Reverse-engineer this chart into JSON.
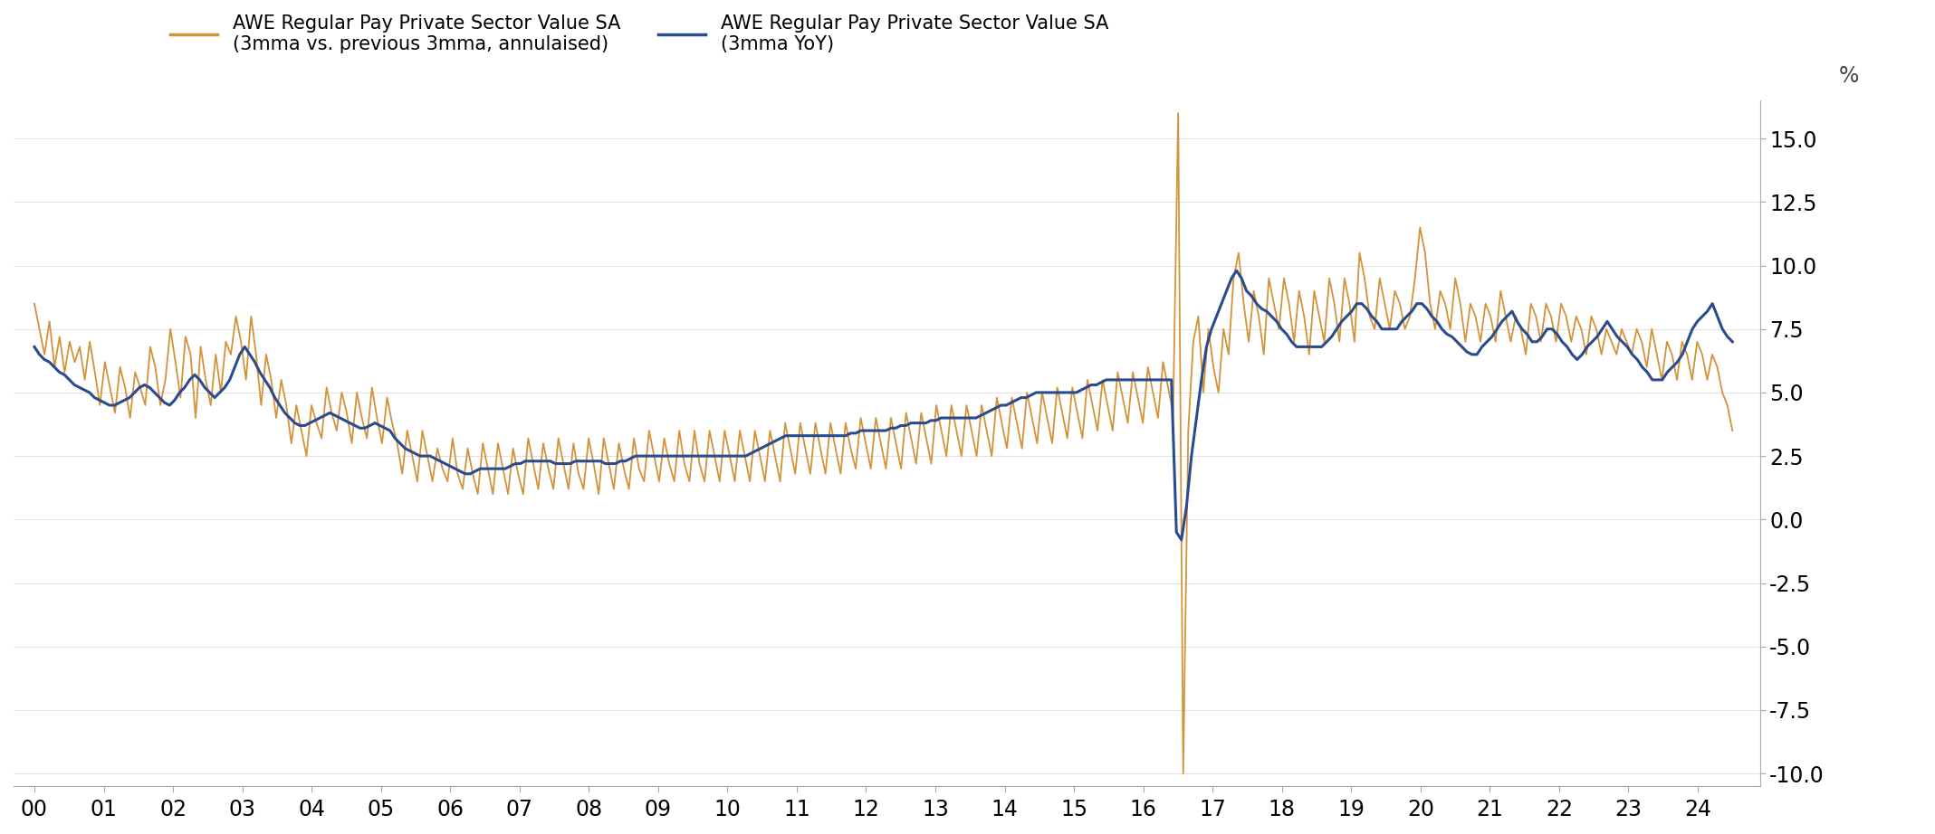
{
  "legend_label_orange": "AWE Regular Pay Private Sector Value SA\n(3mma vs. previous 3mma, annulaised)",
  "legend_label_blue": "AWE Regular Pay Private Sector Value SA\n(3mma YoY)",
  "ylabel": "%",
  "ylim": [
    -10.5,
    16.5
  ],
  "yticks": [
    -10.0,
    -7.5,
    -5.0,
    -2.5,
    0.0,
    2.5,
    5.0,
    7.5,
    10.0,
    12.5,
    15.0
  ],
  "color_orange": "#D4923A",
  "color_blue": "#2B4C8C",
  "xtick_labels": [
    "00",
    "01",
    "02",
    "03",
    "04",
    "05",
    "06",
    "07",
    "08",
    "09",
    "10",
    "11",
    "12",
    "13",
    "14",
    "15",
    "16",
    "17",
    "18",
    "19",
    "20",
    "21",
    "22",
    "23",
    "24"
  ],
  "background_color": "#ffffff",
  "blue_data": [
    6.8,
    6.5,
    6.3,
    6.2,
    6.0,
    5.8,
    5.7,
    5.5,
    5.3,
    5.2,
    5.1,
    5.0,
    4.8,
    4.7,
    4.6,
    4.5,
    4.5,
    4.6,
    4.7,
    4.8,
    5.0,
    5.2,
    5.3,
    5.2,
    5.0,
    4.8,
    4.6,
    4.5,
    4.7,
    5.0,
    5.2,
    5.5,
    5.7,
    5.5,
    5.2,
    5.0,
    4.8,
    5.0,
    5.2,
    5.5,
    6.0,
    6.5,
    6.8,
    6.5,
    6.2,
    5.8,
    5.5,
    5.2,
    4.8,
    4.5,
    4.2,
    4.0,
    3.8,
    3.7,
    3.7,
    3.8,
    3.9,
    4.0,
    4.1,
    4.2,
    4.1,
    4.0,
    3.9,
    3.8,
    3.7,
    3.6,
    3.6,
    3.7,
    3.8,
    3.7,
    3.6,
    3.5,
    3.2,
    3.0,
    2.8,
    2.7,
    2.6,
    2.5,
    2.5,
    2.5,
    2.4,
    2.3,
    2.2,
    2.1,
    2.0,
    1.9,
    1.8,
    1.8,
    1.9,
    2.0,
    2.0,
    2.0,
    2.0,
    2.0,
    2.0,
    2.1,
    2.2,
    2.2,
    2.3,
    2.3,
    2.3,
    2.3,
    2.3,
    2.3,
    2.2,
    2.2,
    2.2,
    2.2,
    2.3,
    2.3,
    2.3,
    2.3,
    2.3,
    2.3,
    2.2,
    2.2,
    2.2,
    2.3,
    2.3,
    2.4,
    2.5,
    2.5,
    2.5,
    2.5,
    2.5,
    2.5,
    2.5,
    2.5,
    2.5,
    2.5,
    2.5,
    2.5,
    2.5,
    2.5,
    2.5,
    2.5,
    2.5,
    2.5,
    2.5,
    2.5,
    2.5,
    2.5,
    2.5,
    2.6,
    2.7,
    2.8,
    2.9,
    3.0,
    3.1,
    3.2,
    3.3,
    3.3,
    3.3,
    3.3,
    3.3,
    3.3,
    3.3,
    3.3,
    3.3,
    3.3,
    3.3,
    3.3,
    3.3,
    3.4,
    3.4,
    3.5,
    3.5,
    3.5,
    3.5,
    3.5,
    3.5,
    3.6,
    3.6,
    3.7,
    3.7,
    3.8,
    3.8,
    3.8,
    3.8,
    3.9,
    3.9,
    4.0,
    4.0,
    4.0,
    4.0,
    4.0,
    4.0,
    4.0,
    4.0,
    4.1,
    4.2,
    4.3,
    4.4,
    4.5,
    4.5,
    4.6,
    4.7,
    4.8,
    4.8,
    4.9,
    5.0,
    5.0,
    5.0,
    5.0,
    5.0,
    5.0,
    5.0,
    5.0,
    5.0,
    5.1,
    5.2,
    5.3,
    5.3,
    5.4,
    5.5,
    5.5,
    5.5,
    5.5,
    5.5,
    5.5,
    5.5,
    5.5,
    5.5,
    5.5,
    5.5,
    5.5,
    5.5,
    5.5,
    -0.5,
    -0.8,
    0.5,
    2.5,
    4.0,
    5.5,
    6.8,
    7.5,
    8.0,
    8.5,
    9.0,
    9.5,
    9.8,
    9.5,
    9.0,
    8.8,
    8.5,
    8.3,
    8.2,
    8.0,
    7.8,
    7.5,
    7.3,
    7.0,
    6.8,
    6.8,
    6.8,
    6.8,
    6.8,
    6.8,
    7.0,
    7.2,
    7.5,
    7.8,
    8.0,
    8.2,
    8.5,
    8.5,
    8.3,
    8.0,
    7.8,
    7.5,
    7.5,
    7.5,
    7.5,
    7.8,
    8.0,
    8.2,
    8.5,
    8.5,
    8.3,
    8.0,
    7.8,
    7.5,
    7.3,
    7.2,
    7.0,
    6.8,
    6.6,
    6.5,
    6.5,
    6.8,
    7.0,
    7.2,
    7.5,
    7.8,
    8.0,
    8.2,
    7.8,
    7.5,
    7.3,
    7.0,
    7.0,
    7.2,
    7.5,
    7.5,
    7.3,
    7.0,
    6.8,
    6.5,
    6.3,
    6.5,
    6.8,
    7.0,
    7.2,
    7.5,
    7.8,
    7.5,
    7.2,
    7.0,
    6.8,
    6.5,
    6.3,
    6.0,
    5.8,
    5.5,
    5.5,
    5.5,
    5.8,
    6.0,
    6.2,
    6.5,
    7.0,
    7.5,
    7.8,
    8.0,
    8.2,
    8.5,
    8.0,
    7.5,
    7.2,
    7.0
  ],
  "orange_data": [
    8.5,
    7.5,
    6.5,
    7.8,
    6.0,
    7.2,
    5.8,
    7.0,
    6.2,
    6.8,
    5.5,
    7.0,
    5.8,
    4.5,
    6.2,
    5.2,
    4.2,
    6.0,
    5.2,
    4.0,
    5.8,
    5.2,
    4.5,
    6.8,
    6.0,
    4.5,
    5.5,
    7.5,
    6.2,
    4.8,
    7.2,
    6.5,
    4.0,
    6.8,
    5.5,
    4.5,
    6.5,
    5.0,
    7.0,
    6.5,
    8.0,
    7.0,
    5.5,
    8.0,
    6.5,
    4.5,
    6.5,
    5.5,
    4.0,
    5.5,
    4.5,
    3.0,
    4.5,
    3.5,
    2.5,
    4.5,
    3.8,
    3.2,
    5.2,
    4.2,
    3.5,
    5.0,
    4.2,
    3.0,
    5.0,
    4.0,
    3.2,
    5.2,
    4.0,
    3.0,
    4.8,
    3.8,
    3.0,
    1.8,
    3.5,
    2.5,
    1.5,
    3.5,
    2.5,
    1.5,
    2.8,
    2.0,
    1.5,
    3.2,
    1.8,
    1.2,
    2.8,
    1.8,
    1.0,
    3.0,
    2.0,
    1.0,
    3.0,
    2.0,
    1.0,
    2.8,
    1.8,
    1.0,
    3.2,
    2.2,
    1.2,
    3.0,
    2.0,
    1.2,
    3.2,
    2.2,
    1.2,
    3.0,
    1.8,
    1.2,
    3.2,
    2.2,
    1.0,
    3.2,
    2.2,
    1.2,
    3.0,
    2.0,
    1.2,
    3.2,
    2.0,
    1.5,
    3.5,
    2.5,
    1.5,
    3.2,
    2.2,
    1.5,
    3.5,
    2.2,
    1.5,
    3.5,
    2.2,
    1.5,
    3.5,
    2.5,
    1.5,
    3.5,
    2.5,
    1.5,
    3.5,
    2.5,
    1.5,
    3.5,
    2.5,
    1.5,
    3.5,
    2.5,
    1.5,
    3.8,
    2.8,
    1.8,
    3.8,
    2.8,
    1.8,
    3.8,
    2.8,
    1.8,
    3.8,
    2.8,
    1.8,
    3.8,
    2.8,
    2.0,
    4.0,
    3.0,
    2.0,
    4.0,
    3.0,
    2.0,
    4.0,
    3.0,
    2.0,
    4.2,
    3.2,
    2.2,
    4.2,
    3.2,
    2.2,
    4.5,
    3.5,
    2.5,
    4.5,
    3.5,
    2.5,
    4.5,
    3.5,
    2.5,
    4.5,
    3.5,
    2.5,
    4.8,
    3.8,
    2.8,
    4.8,
    3.8,
    2.8,
    5.0,
    4.0,
    3.0,
    5.0,
    4.0,
    3.0,
    5.2,
    4.2,
    3.2,
    5.2,
    4.2,
    3.2,
    5.5,
    4.5,
    3.5,
    5.5,
    4.5,
    3.5,
    5.8,
    4.8,
    3.8,
    5.8,
    4.8,
    3.8,
    6.0,
    5.0,
    4.0,
    6.2,
    5.2,
    4.2,
    16.0,
    -10.0,
    3.5,
    7.0,
    8.0,
    5.0,
    7.5,
    6.0,
    5.0,
    7.5,
    6.5,
    9.5,
    10.5,
    8.5,
    7.0,
    9.0,
    8.0,
    6.5,
    9.5,
    8.5,
    7.5,
    9.5,
    8.5,
    7.0,
    9.0,
    8.0,
    6.5,
    9.0,
    8.0,
    7.0,
    9.5,
    8.5,
    7.0,
    9.5,
    8.5,
    7.0,
    10.5,
    9.5,
    8.0,
    7.5,
    9.5,
    8.5,
    7.5,
    9.0,
    8.5,
    7.5,
    8.0,
    9.5,
    11.5,
    10.5,
    8.5,
    7.5,
    9.0,
    8.5,
    7.5,
    9.5,
    8.5,
    7.0,
    8.5,
    8.0,
    7.0,
    8.5,
    8.0,
    7.0,
    9.0,
    8.0,
    7.0,
    8.0,
    7.5,
    6.5,
    8.5,
    8.0,
    7.0,
    8.5,
    8.0,
    7.0,
    8.5,
    8.0,
    7.0,
    8.0,
    7.5,
    6.5,
    8.0,
    7.5,
    6.5,
    7.5,
    7.0,
    6.5,
    7.5,
    7.0,
    6.5,
    7.5,
    7.0,
    6.0,
    7.5,
    6.5,
    5.5,
    7.0,
    6.5,
    5.5,
    7.0,
    6.5,
    5.5,
    7.0,
    6.5,
    5.5,
    6.5,
    6.0,
    5.0,
    4.5,
    3.5
  ]
}
